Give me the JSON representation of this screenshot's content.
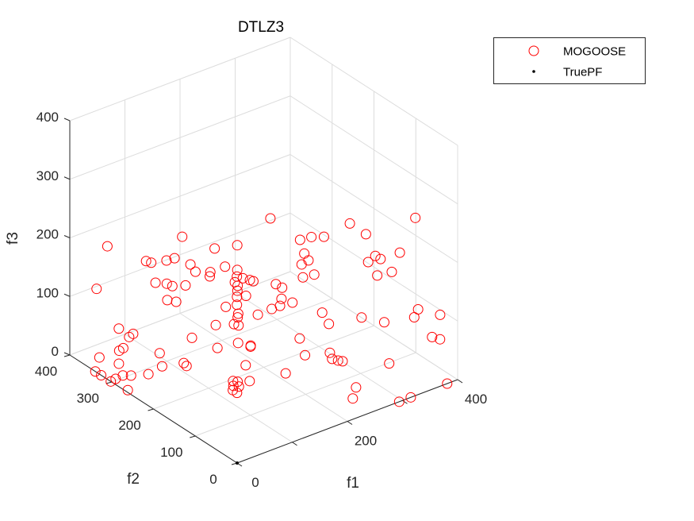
{
  "chart_data": {
    "type": "scatter",
    "projection": "3d",
    "title": "DTLZ3",
    "xlabel": "f1",
    "ylabel": "f2",
    "zlabel": "f3",
    "xlim": [
      0,
      400
    ],
    "ylim": [
      0,
      400
    ],
    "zlim": [
      0,
      400
    ],
    "xticks": [
      0,
      200,
      400
    ],
    "yticks": [
      0,
      100,
      200,
      300,
      400
    ],
    "zticks": [
      0,
      100,
      200,
      300,
      400
    ],
    "grid": true,
    "legend_position": "top-right",
    "colors": {
      "MOGOOSE": "#ff0000",
      "TruePF": "#000000"
    },
    "series": [
      {
        "name": "MOGOOSE",
        "marker": "circle",
        "points": [
          [
            266,
            271,
            198
          ],
          [
            379,
            230,
            168
          ],
          [
            384,
            80,
            245
          ],
          [
            169,
            354,
            163
          ],
          [
            291,
            233,
            170
          ],
          [
            310,
            231,
            169
          ],
          [
            329,
            226,
            165
          ],
          [
            393,
            210,
            154
          ],
          [
            53,
            380,
            176
          ],
          [
            177,
            287,
            171
          ],
          [
            193,
            254,
            186
          ],
          [
            285,
            215,
            157
          ],
          [
            371,
            100,
            181
          ],
          [
            388,
            181,
            132
          ],
          [
            374,
            150,
            146
          ],
          [
            127,
            385,
            122
          ],
          [
            128,
            374,
            124
          ],
          [
            139,
            352,
            134
          ],
          [
            146,
            342,
            140
          ],
          [
            372,
            177,
            129
          ],
          [
            149,
            308,
            144
          ],
          [
            285,
            205,
            150
          ],
          [
            271,
            203,
            149
          ],
          [
            171,
            225,
            165
          ],
          [
            146,
            292,
            140
          ],
          [
            167,
            249,
            161
          ],
          [
            154,
            267,
            148
          ],
          [
            150,
            263,
            144
          ],
          [
            364,
            110,
            146
          ],
          [
            113,
            344,
            109
          ],
          [
            119,
            325,
            114
          ],
          [
            120,
            313,
            115
          ],
          [
            128,
            292,
            123
          ],
          [
            368,
            150,
            120
          ],
          [
            165,
            218,
            159
          ],
          [
            159,
            215,
            153
          ],
          [
            172,
            213,
            156
          ],
          [
            158,
            207,
            151
          ],
          [
            181,
            208,
            152
          ],
          [
            185,
            205,
            150
          ],
          [
            281,
            186,
            136
          ],
          [
            262,
            188,
            137
          ],
          [
            216,
            192,
            140
          ],
          [
            222,
            185,
            135
          ],
          [
            153,
            201,
            147
          ],
          [
            147,
            194,
            142
          ],
          [
            161,
            191,
            140
          ],
          [
            41,
            390,
            103
          ],
          [
            211,
            172,
            126
          ],
          [
            224,
            163,
            119
          ],
          [
            203,
            165,
            120
          ],
          [
            188,
            165,
            120
          ],
          [
            140,
            185,
            135
          ],
          [
            132,
            201,
            127
          ],
          [
            162,
            164,
            120
          ],
          [
            259,
            138,
            101
          ],
          [
            389,
            80,
            87
          ],
          [
            391,
            30,
            100
          ],
          [
            382,
            80,
            76
          ],
          [
            104,
            304,
            101
          ],
          [
            108,
            288,
            104
          ],
          [
            134,
            174,
            127
          ],
          [
            130,
            170,
            124
          ],
          [
            313,
            115,
            84
          ],
          [
            342,
            99,
            73
          ],
          [
            259,
            122,
            89
          ],
          [
            110,
            196,
            106
          ],
          [
            121,
            167,
            117
          ],
          [
            124,
            160,
            117
          ],
          [
            51,
            350,
            50
          ],
          [
            55,
            321,
            53
          ],
          [
            50,
            324,
            48
          ],
          [
            85,
            220,
            82
          ],
          [
            203,
            118,
            86
          ],
          [
            384,
            40,
            60
          ],
          [
            387,
            25,
            62
          ],
          [
            108,
            140,
            102
          ],
          [
            123,
            130,
            95
          ],
          [
            124,
            131,
            96
          ],
          [
            91,
            167,
            87
          ],
          [
            37,
            321,
            35
          ],
          [
            32,
            324,
            31
          ],
          [
            196,
            96,
            70
          ],
          [
            235,
            88,
            64
          ],
          [
            233,
            80,
            58
          ],
          [
            240,
            75,
            55
          ],
          [
            246,
            72,
            53
          ],
          [
            53,
            255,
            51
          ],
          [
            15,
            349,
            14
          ],
          [
            313,
            49,
            36
          ],
          [
            58,
            204,
            56
          ],
          [
            57,
            196,
            55
          ],
          [
            43,
            236,
            41
          ],
          [
            20,
            309,
            20
          ],
          [
            99,
            110,
            81
          ],
          [
            151,
            83,
            61
          ],
          [
            0,
            339,
            0
          ],
          [
            0,
            325,
            0
          ],
          [
            0,
            302,
            0
          ],
          [
            5,
            297,
            5
          ],
          [
            12,
            289,
            12
          ],
          [
            17,
            276,
            16
          ],
          [
            28,
            249,
            27
          ],
          [
            2,
            264,
            2
          ],
          [
            70,
            102,
            68
          ],
          [
            73,
            95,
            69
          ],
          [
            66,
            96,
            64
          ],
          [
            70,
            88,
            65
          ],
          [
            91,
            90,
            66
          ],
          [
            62,
            92,
            60
          ],
          [
            62,
            82,
            60
          ],
          [
            243,
            36,
            26
          ],
          [
            228,
            24,
            18
          ],
          [
            315,
            0,
            0
          ],
          [
            294,
            0,
            0
          ],
          [
            381,
            0,
            0
          ]
        ]
      },
      {
        "name": "TruePF",
        "marker": "dot",
        "points": [
          [
            0,
            0,
            0
          ]
        ]
      }
    ]
  }
}
